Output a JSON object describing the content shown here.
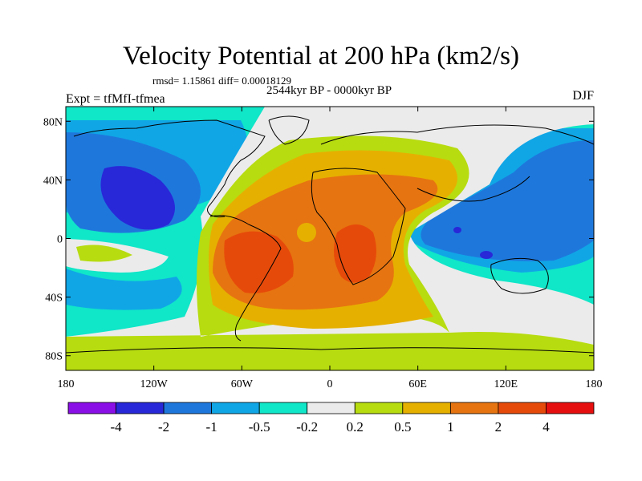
{
  "chart_data": {
    "type": "heatmap",
    "title": "Velocity Potential at 200 hPa (km2/s)",
    "stats": "rmsd= 1.15861 diff= 0.00018129",
    "subtitle": "2544kyr BP - 0000kyr BP",
    "left_label": "Expt = tfMfI-tfmea",
    "right_label": "DJF",
    "x_ticks": [
      "180",
      "120W",
      "60W",
      "0",
      "60E",
      "120E",
      "180"
    ],
    "y_ticks": [
      "80N",
      "40N",
      "0",
      "40S",
      "80S"
    ],
    "x_range": [
      -180,
      180
    ],
    "y_range": [
      -90,
      90
    ],
    "colorbar": {
      "levels": [
        "-4",
        "-2",
        "-1",
        "-0.5",
        "-0.2",
        "0.2",
        "0.5",
        "1",
        "2",
        "4"
      ],
      "colors": [
        "#8A0FE6",
        "#2828D8",
        "#1E78DC",
        "#10A6E6",
        "#10E6C8",
        "#EBEBEB",
        "#B7DC10",
        "#E6B000",
        "#E67410",
        "#E64A0A",
        "#E60F0F"
      ]
    },
    "regions": [
      {
        "value_class": "positive",
        "level": "0.2",
        "description": "broad positive band Atlantic-Africa"
      },
      {
        "value_class": "positive",
        "level": "2",
        "description": "maxima over South America and Africa"
      },
      {
        "value_class": "negative",
        "level": "-2",
        "description": "minimum over North Pacific"
      },
      {
        "value_class": "negative",
        "level": "-1",
        "description": "minimum over Maritime Continent"
      }
    ]
  }
}
